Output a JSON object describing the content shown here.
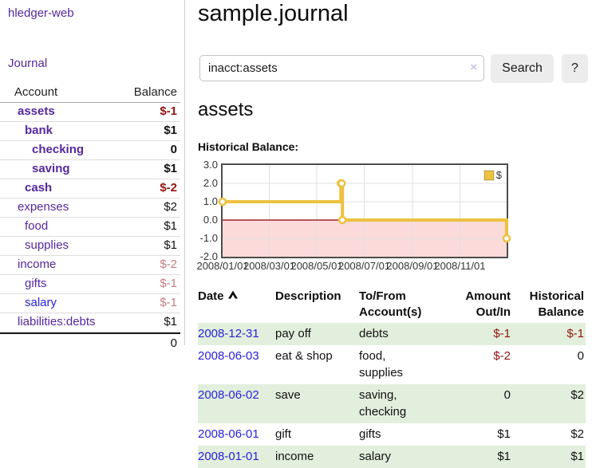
{
  "app": {
    "brand": "hledger-web",
    "nav": {
      "journal": "Journal"
    }
  },
  "sidebar": {
    "columns": {
      "account": "Account",
      "balance": "Balance"
    },
    "rows": [
      {
        "label": "assets",
        "indent": 1,
        "bold": true,
        "color": "purple",
        "balance": "$-1",
        "balance_style": "neg-strong"
      },
      {
        "label": "bank",
        "indent": 2,
        "bold": true,
        "color": "purple",
        "balance": "$1",
        "balance_style": "normal"
      },
      {
        "label": "checking",
        "indent": 3,
        "bold": true,
        "color": "purple",
        "balance": "0",
        "balance_style": "normal"
      },
      {
        "label": "saving",
        "indent": 3,
        "bold": true,
        "color": "purple",
        "balance": "$1",
        "balance_style": "normal"
      },
      {
        "label": "cash",
        "indent": 2,
        "bold": true,
        "color": "purple",
        "balance": "$-2",
        "balance_style": "neg-strong"
      },
      {
        "label": "expenses",
        "indent": 1,
        "bold": false,
        "color": "purple",
        "balance": "$2",
        "balance_style": "normal"
      },
      {
        "label": "food",
        "indent": 2,
        "bold": false,
        "color": "purple",
        "balance": "$1",
        "balance_style": "normal"
      },
      {
        "label": "supplies",
        "indent": 2,
        "bold": false,
        "color": "purple",
        "balance": "$1",
        "balance_style": "normal"
      },
      {
        "label": "income",
        "indent": 1,
        "bold": false,
        "color": "purple",
        "balance": "$-2",
        "balance_style": "neg-soft"
      },
      {
        "label": "gifts",
        "indent": 2,
        "bold": false,
        "color": "purple",
        "balance": "$-1",
        "balance_style": "neg-soft"
      },
      {
        "label": "salary",
        "indent": 2,
        "bold": false,
        "color": "blue",
        "balance": "$-1",
        "balance_style": "neg-soft"
      },
      {
        "label": "liabilities:debts",
        "indent": 1,
        "bold": false,
        "color": "purple",
        "balance": "$1",
        "balance_style": "normal"
      }
    ],
    "total": "0"
  },
  "header": {
    "title": "sample.journal"
  },
  "search": {
    "value": "inacct:assets",
    "clear_icon": "×",
    "button_label": "Search",
    "help_label": "?"
  },
  "account_page": {
    "heading": "assets",
    "chart_label": "Historical Balance:"
  },
  "chart_data": {
    "type": "line",
    "title": "Historical Balance:",
    "steps": true,
    "xlim": [
      "2008-01-01",
      "2008-12-31"
    ],
    "ylim": [
      -2,
      3
    ],
    "x_ticks": [
      "2008/01/01",
      "2008/03/01",
      "2008/05/01",
      "2008/07/01",
      "2008/09/01",
      "2008/11/01"
    ],
    "y_ticks": [
      "3.0",
      "2.0",
      "1.0",
      "0.0",
      "-1.0",
      "-2.0"
    ],
    "grid": true,
    "zero_line_color": "#8b0000",
    "negative_region_color": "#fcdada",
    "legend": {
      "label": "$",
      "position": "top-right"
    },
    "series": [
      {
        "name": "$",
        "color": "#edc240",
        "points": [
          {
            "date": "2008-01-01",
            "value": 1
          },
          {
            "date": "2008-06-01",
            "value": 2
          },
          {
            "date": "2008-06-02",
            "value": 2
          },
          {
            "date": "2008-06-03",
            "value": 0
          },
          {
            "date": "2008-12-31",
            "value": -1
          }
        ]
      }
    ]
  },
  "register": {
    "headers": {
      "date": "Date",
      "description": "Description",
      "accounts": [
        "To/From",
        "Account(s)"
      ],
      "amount": [
        "Amount",
        "Out/In"
      ],
      "balance": [
        "Historical",
        "Balance"
      ]
    },
    "rows": [
      {
        "date": "2008-12-31",
        "description": "pay off",
        "accounts": "debts",
        "amount": "$-1",
        "amount_neg": true,
        "balance": "$-1",
        "balance_neg": true,
        "shaded": true
      },
      {
        "date": "2008-06-03",
        "description": "eat & shop",
        "accounts": "food, supplies",
        "amount": "$-2",
        "amount_neg": true,
        "balance": "0",
        "balance_neg": false,
        "shaded": false
      },
      {
        "date": "2008-06-02",
        "description": "save",
        "accounts": "saving, checking",
        "amount": "0",
        "amount_neg": false,
        "balance": "$2",
        "balance_neg": false,
        "shaded": true
      },
      {
        "date": "2008-06-01",
        "description": "gift",
        "accounts": "gifts",
        "amount": "$1",
        "amount_neg": false,
        "balance": "$2",
        "balance_neg": false,
        "shaded": false
      },
      {
        "date": "2008-01-01",
        "description": "income",
        "accounts": "salary",
        "amount": "$1",
        "amount_neg": false,
        "balance": "$1",
        "balance_neg": false,
        "shaded": true
      }
    ]
  }
}
